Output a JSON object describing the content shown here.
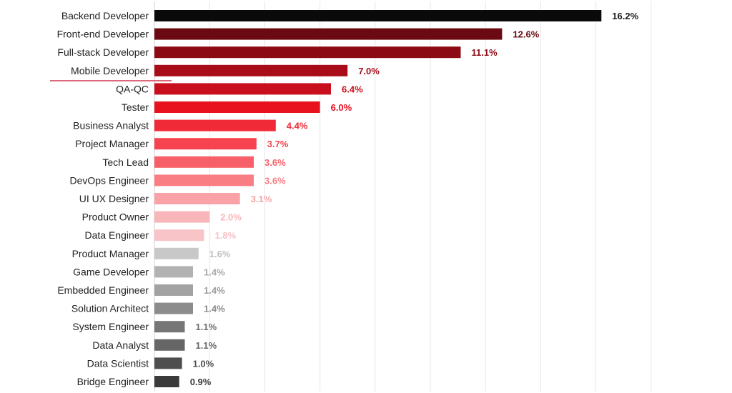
{
  "chart_data": {
    "type": "bar",
    "orientation": "horizontal",
    "title": "",
    "xlabel": "",
    "ylabel": "",
    "xlim": [
      0,
      18
    ],
    "grid": true,
    "legend": "none",
    "categories": [
      "Backend Developer",
      "Front-end Developer",
      "Full-stack Developer",
      "Mobile Developer",
      "QA-QC",
      "Tester",
      "Business Analyst",
      "Project Manager",
      "Tech Lead",
      "DevOps Engineer",
      "UI UX Designer",
      "Product Owner",
      "Data Engineer",
      "Product Manager",
      "Game Developer",
      "Embedded Engineer",
      "Solution Architect",
      "System Engineer",
      "Data Analyst",
      "Data Scientist",
      "Bridge Engineer"
    ],
    "values": [
      16.2,
      12.6,
      11.1,
      7.0,
      6.4,
      6.0,
      4.4,
      3.7,
      3.6,
      3.6,
      3.1,
      2.0,
      1.8,
      1.6,
      1.4,
      1.4,
      1.4,
      1.1,
      1.1,
      1.0,
      0.9
    ],
    "value_labels": [
      "16.2%",
      "12.6%",
      "11.1%",
      "7.0%",
      "6.4%",
      "6.0%",
      "4.4%",
      "3.7%",
      "3.6%",
      "3.6%",
      "3.1%",
      "2.0%",
      "1.8%",
      "1.6%",
      "1.4%",
      "1.4%",
      "1.4%",
      "1.1%",
      "1.1%",
      "1.0%",
      "0.9%"
    ],
    "bar_colors": [
      "#0a0a0a",
      "#6b0a12",
      "#8c0a14",
      "#a80c18",
      "#c80f1e",
      "#e8121f",
      "#f02a36",
      "#f5444f",
      "#f76068",
      "#f87e84",
      "#f9a3a8",
      "#f8b6ba",
      "#f8c4c7",
      "#c8c8c8",
      "#b2b2b2",
      "#a2a2a2",
      "#8c8c8c",
      "#767676",
      "#666666",
      "#4e4e4e",
      "#3a3a3a"
    ],
    "label_colors": [
      "#1a1a1a",
      "#6b0a12",
      "#8c0a14",
      "#a80c18",
      "#c80f1e",
      "#e8121f",
      "#f02a36",
      "#f5444f",
      "#f76068",
      "#f87e84",
      "#f9a3a8",
      "#f8b6ba",
      "#f8c4c7",
      "#c0c0c0",
      "#a8a8a8",
      "#9a9a9a",
      "#8a8a8a",
      "#6e6e6e",
      "#666666",
      "#4e4e4e",
      "#3a3a3a"
    ]
  }
}
